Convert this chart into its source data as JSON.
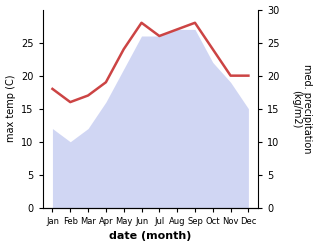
{
  "months": [
    "Jan",
    "Feb",
    "Mar",
    "Apr",
    "May",
    "Jun",
    "Jul",
    "Aug",
    "Sep",
    "Oct",
    "Nov",
    "Dec"
  ],
  "temp": [
    12,
    10,
    12,
    16,
    21,
    26,
    26,
    27,
    27,
    22,
    19,
    15
  ],
  "precip": [
    18,
    16,
    17,
    19,
    24,
    28,
    26,
    27,
    28,
    24,
    20,
    20
  ],
  "precip_color": "#cc4444",
  "fill_color": "#b8c0ee",
  "fill_alpha": 0.65,
  "ylabel_left": "max temp (C)",
  "ylabel_right": "med. precipitation\n(kg/m2)",
  "xlabel": "date (month)",
  "ylim_left": [
    0,
    30
  ],
  "ylim_right": [
    0,
    30
  ],
  "yticks_left": [
    0,
    5,
    10,
    15,
    20,
    25
  ],
  "yticks_right": [
    0,
    5,
    10,
    15,
    20,
    25,
    30
  ]
}
